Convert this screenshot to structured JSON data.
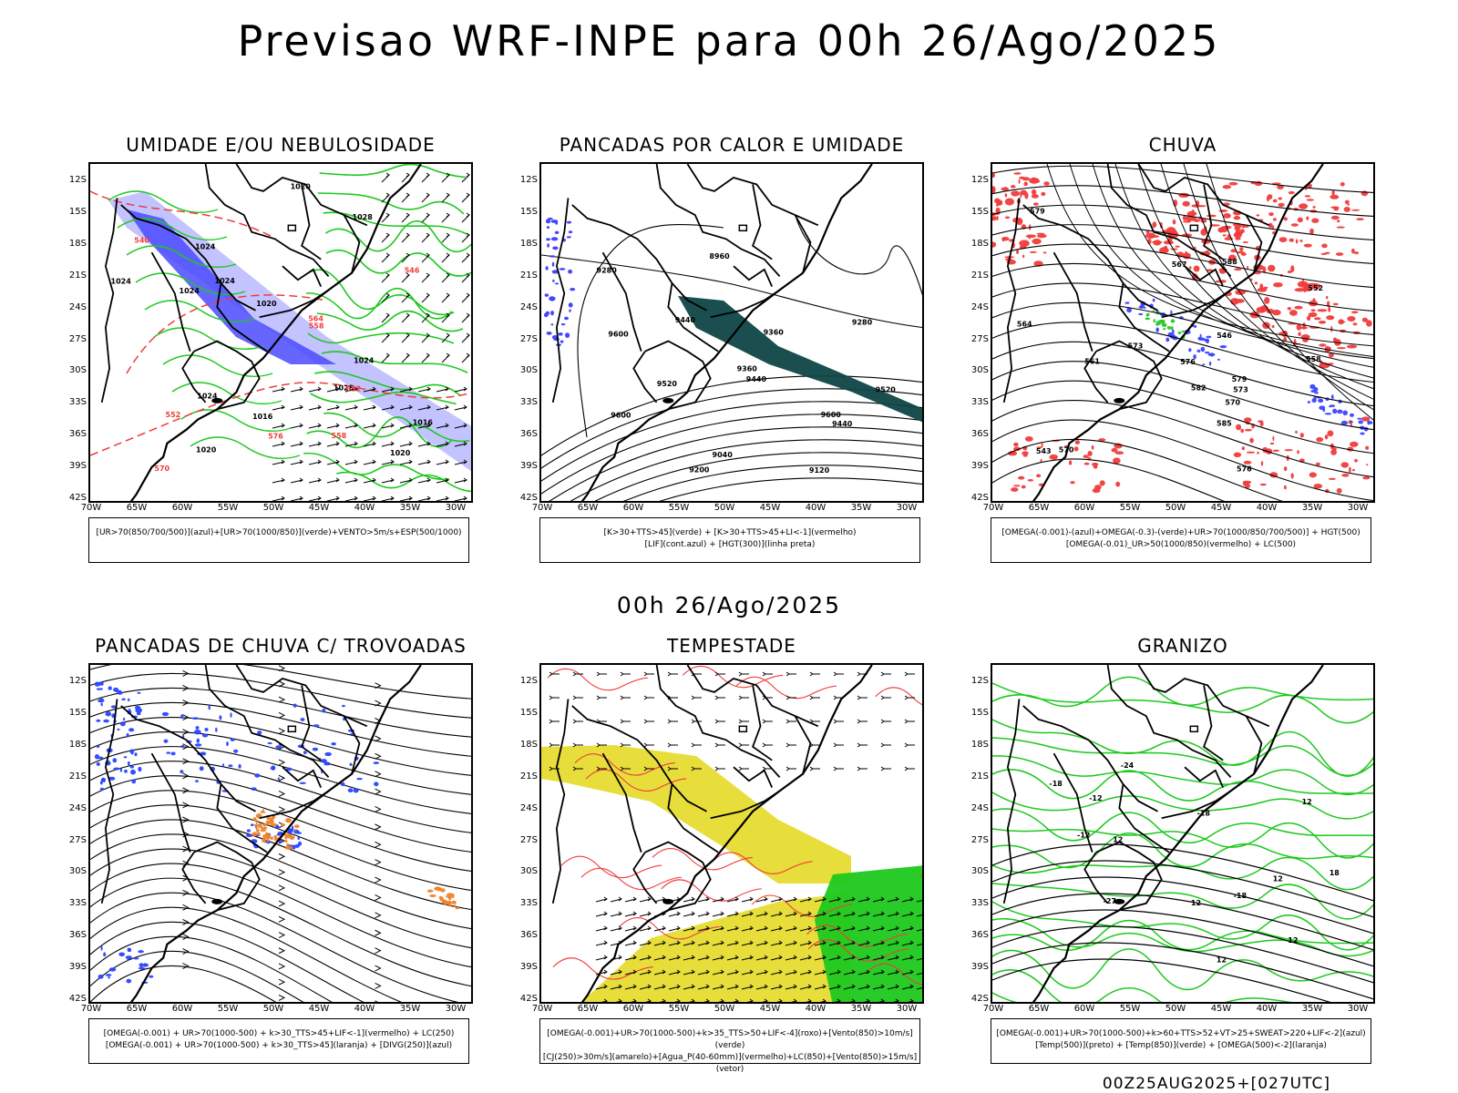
{
  "title": "Previsao WRF-INPE  para 00h 26/Ago/2025",
  "row_time": "00h 26/Ago/2025",
  "footer": "00Z25AUG2025+[027UTC]",
  "lat_ticks": [
    "12S",
    "15S",
    "18S",
    "21S",
    "24S",
    "27S",
    "30S",
    "33S",
    "36S",
    "39S",
    "42S"
  ],
  "lon_ticks": [
    "70W",
    "65W",
    "60W",
    "55W",
    "50W",
    "45W",
    "40W",
    "35W",
    "30W"
  ],
  "panels": [
    {
      "title": "UMIDADE E/OU NEBULOSIDADE",
      "legend": [
        "[UR>70(850/700/500)](azul)+[UR>70(1000/850)](verde)+VENTO>5m/s+ESP(500/1000)"
      ],
      "labels": [
        "1016",
        "1020",
        "1024",
        "1028",
        "1024",
        "1020",
        "1016",
        "1024",
        "1020",
        "1024",
        "1024",
        "1028",
        "1020",
        "1024",
        "564",
        "570",
        "576",
        "558",
        "552",
        "546",
        "540",
        "552",
        "558"
      ],
      "colors": {
        "blue": "#4b4bff",
        "lightblue": "#b4b4ff",
        "green": "#1ec81e",
        "red": "#f03c3c"
      }
    },
    {
      "title": "PANCADAS POR CALOR E UMIDADE",
      "legend": [
        "[K>30+TTS>45](verde) + [K>30+TTS>45+LI<-1](vermelho)",
        "[LIF](cont.azul) + [HGT(300)](linha preta)"
      ],
      "labels": [
        "9600",
        "9520",
        "9600",
        "9520",
        "9440",
        "9440",
        "9600",
        "9440",
        "9360",
        "9360",
        "9280",
        "9200",
        "9120",
        "9040",
        "8960",
        "9280"
      ],
      "colors": {
        "teal": "#0f4646",
        "blue": "#3c3cff"
      }
    },
    {
      "title": "CHUVA",
      "legend": [
        "[OMEGA(-0.001)-(azul)+OMEGA(-0.3)-(verde)+UR>70(1000/850/700/500)] + HGT(500)",
        "[OMEGA(-0.01)_UR>50(1000/850)(vermelho) + LC(500)"
      ],
      "labels": [
        "585",
        "588",
        "582",
        "579",
        "576",
        "573",
        "570",
        "567",
        "564",
        "561",
        "558",
        "552",
        "546",
        "543",
        "579",
        "576",
        "573",
        "570"
      ],
      "colors": {
        "red": "#f03c3c",
        "blue": "#3c46ff",
        "green": "#28c828"
      }
    },
    {
      "title": "PANCADAS DE CHUVA C/ TROVOADAS",
      "legend": [
        "[OMEGA(-0.001) + UR>70(1000-500) + k>30_TTS>45+LIF<-1](vermelho) + LC(250)",
        "[OMEGA(-0.001) + UR>70(1000-500) + k>30_TTS>45](laranja) + [DIVG(250)](azul)"
      ],
      "labels": [],
      "colors": {
        "blue": "#2846ff",
        "orange": "#f08228"
      }
    },
    {
      "title": "TEMPESTADE",
      "legend": [
        "[OMEGA(-0.001)+UR>70(1000-500)+k>35_TTS>50+LIF<-4](roxo)+[Vento(850)>10m/s](verde)",
        "[CJ(250)>30m/s](amarelo)+[Agua_P(40-60mm)](vermelho)+LC(850)+[Vento(850)>15m/s](vetor)"
      ],
      "labels": [],
      "colors": {
        "yellow": "#e6dc32",
        "green": "#1ec81e",
        "red": "#f03c3c"
      }
    },
    {
      "title": "GRANIZO",
      "legend": [
        "[OMEGA(-0.001)+UR>70(1000-500)+k>60+TTS>52+VT>25+SWEAT>220+LIF<-2](azul)",
        "[Temp(500)](preto) + [Temp(850)](verde) + [OMEGA(500)<-2](laranja)"
      ],
      "labels": [
        "12",
        "-12",
        "12",
        "12",
        "12",
        "18",
        "12",
        "-12",
        "-18",
        "-18",
        "-18",
        "-24",
        "-27",
        "12"
      ],
      "colors": {
        "green": "#1ec81e",
        "black": "#000000"
      }
    }
  ]
}
